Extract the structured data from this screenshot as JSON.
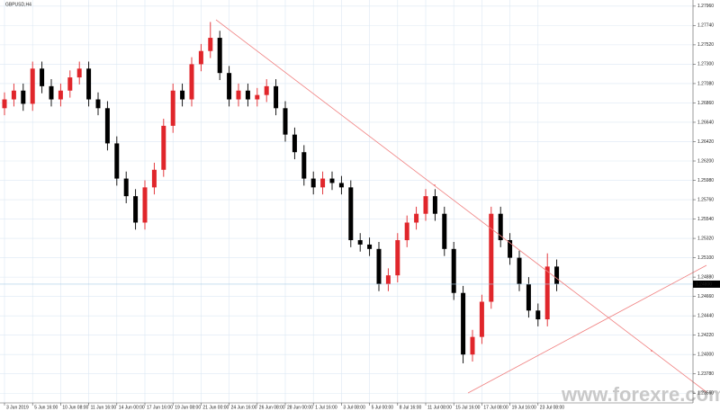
{
  "chart_data": {
    "type": "candlestick",
    "title": "GBPUSD,H4",
    "watermark": "www.forexre.com",
    "up_color": "#e0262b",
    "down_color": "#000000",
    "grid": true,
    "categories": [
      "3 Jun 2019",
      null,
      null,
      "5 Jun 16:00",
      null,
      null,
      "10 Jun 08:00",
      null,
      null,
      "11 Jun 16:00",
      null,
      null,
      "14 Jun 00:00",
      null,
      null,
      "17 Jun 16:00",
      null,
      null,
      "19 Jun 08:00",
      null,
      null,
      "21 Jun 00:00",
      null,
      null,
      "24 Jun 16:00",
      null,
      null,
      "26 Jun 08:00",
      null,
      null,
      "28 Jun 00:00",
      null,
      null,
      "1 Jul 16:00",
      null,
      null,
      "3 Jul 08:00",
      null,
      null,
      "5 Jul 00:00",
      null,
      null,
      "8 Jul 16:00",
      null,
      null,
      "11 Jul 08:00",
      null,
      null,
      "15 Jul 16:00",
      null,
      null,
      "17 Jul 08:00",
      null,
      null,
      "19 Jul 16:00",
      null,
      null,
      "23 Jul 08:00",
      null,
      null
    ],
    "open": [
      1.268,
      1.269,
      1.27,
      1.2685,
      1.2725,
      1.2705,
      1.269,
      1.27,
      1.2715,
      1.2725,
      1.269,
      1.268,
      1.264,
      1.26,
      1.258,
      1.255,
      1.259,
      1.261,
      1.266,
      1.27,
      1.269,
      1.273,
      1.2745,
      1.276,
      1.272,
      1.269,
      1.27,
      1.269,
      1.2695,
      1.2705,
      1.268,
      1.265,
      1.263,
      1.26,
      1.259,
      1.26,
      1.2595,
      1.259,
      1.253,
      1.2525,
      1.252,
      1.248,
      1.249,
      1.253,
      1.255,
      1.256,
      1.258,
      1.256,
      1.252,
      1.247,
      1.24,
      1.242,
      1.246,
      1.256,
      1.253,
      1.251,
      1.248,
      1.245,
      1.244,
      1.25
    ],
    "high": [
      1.2698,
      1.2708,
      1.2708,
      1.2733,
      1.2733,
      1.2713,
      1.2708,
      1.2723,
      1.2733,
      1.2733,
      1.2698,
      1.2688,
      1.2648,
      1.2608,
      1.2588,
      1.2598,
      1.2618,
      1.2668,
      1.2708,
      1.2708,
      1.2738,
      1.2753,
      1.2778,
      1.2768,
      1.2728,
      1.2708,
      1.2708,
      1.2703,
      1.2713,
      1.2713,
      1.2688,
      1.2658,
      1.2638,
      1.2608,
      1.2608,
      1.2608,
      1.2603,
      1.2598,
      1.2538,
      1.2533,
      1.2528,
      1.2498,
      1.2538,
      1.2558,
      1.2568,
      1.2588,
      1.2588,
      1.2568,
      1.2528,
      1.2478,
      1.2428,
      1.2468,
      1.2568,
      1.2568,
      1.2538,
      1.2518,
      1.2488,
      1.2458,
      1.2515,
      1.2508
    ],
    "low": [
      1.2672,
      1.2682,
      1.2677,
      1.2677,
      1.2697,
      1.2682,
      1.2682,
      1.2692,
      1.2707,
      1.2682,
      1.2672,
      1.2632,
      1.2592,
      1.2572,
      1.2542,
      1.2542,
      1.2582,
      1.2602,
      1.2652,
      1.2682,
      1.2682,
      1.2722,
      1.2737,
      1.2712,
      1.2682,
      1.2682,
      1.2682,
      1.2682,
      1.2687,
      1.2672,
      1.2642,
      1.2622,
      1.2592,
      1.2582,
      1.2582,
      1.2587,
      1.2582,
      1.2522,
      1.2517,
      1.2512,
      1.2472,
      1.2472,
      1.2482,
      1.2522,
      1.2542,
      1.2552,
      1.2552,
      1.2512,
      1.2462,
      1.239,
      1.2392,
      1.2412,
      1.2452,
      1.2522,
      1.2502,
      1.2472,
      1.2442,
      1.2432,
      1.2432,
      1.2472
    ],
    "close": [
      1.269,
      1.27,
      1.2685,
      1.2725,
      1.2705,
      1.269,
      1.27,
      1.2715,
      1.2725,
      1.269,
      1.268,
      1.264,
      1.26,
      1.258,
      1.255,
      1.259,
      1.261,
      1.266,
      1.27,
      1.269,
      1.273,
      1.2745,
      1.276,
      1.272,
      1.269,
      1.27,
      1.269,
      1.2695,
      1.2705,
      1.268,
      1.265,
      1.263,
      1.26,
      1.259,
      1.26,
      1.2595,
      1.259,
      1.253,
      1.2525,
      1.252,
      1.248,
      1.249,
      1.253,
      1.255,
      1.256,
      1.258,
      1.256,
      1.252,
      1.247,
      1.24,
      1.242,
      1.246,
      1.256,
      1.253,
      1.251,
      1.248,
      1.245,
      1.244,
      1.25,
      1.248
    ],
    "last_price": {
      "value": 1.248,
      "label": "1.24800"
    },
    "ylim": [
      1.2345,
      1.2803
    ],
    "yticks": [
      {
        "value": 1.2356,
        "label": "1.23560"
      },
      {
        "value": 1.2378,
        "label": "1.23780"
      },
      {
        "value": 1.24,
        "label": "1.24000"
      },
      {
        "value": 1.2422,
        "label": "1.24220"
      },
      {
        "value": 1.2444,
        "label": "1.24440"
      },
      {
        "value": 1.2466,
        "label": "1.24660"
      },
      {
        "value": 1.2488,
        "label": "1.24880"
      },
      {
        "value": 1.251,
        "label": "1.25100"
      },
      {
        "value": 1.2532,
        "label": "1.25320"
      },
      {
        "value": 1.2554,
        "label": "1.25540"
      },
      {
        "value": 1.2576,
        "label": "1.25760"
      },
      {
        "value": 1.2598,
        "label": "1.25980"
      },
      {
        "value": 1.262,
        "label": "1.26200"
      },
      {
        "value": 1.2642,
        "label": "1.26420"
      },
      {
        "value": 1.2664,
        "label": "1.26640"
      },
      {
        "value": 1.2686,
        "label": "1.26860"
      },
      {
        "value": 1.2708,
        "label": "1.27080"
      },
      {
        "value": 1.273,
        "label": "1.27300"
      },
      {
        "value": 1.2752,
        "label": "1.27520"
      },
      {
        "value": 1.2774,
        "label": "1.27740"
      },
      {
        "value": 1.2796,
        "label": "1.27960"
      }
    ]
  }
}
